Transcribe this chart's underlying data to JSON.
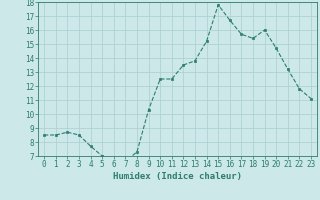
{
  "xlabel": "Humidex (Indice chaleur)",
  "x": [
    0,
    1,
    2,
    3,
    4,
    5,
    6,
    7,
    8,
    9,
    10,
    11,
    12,
    13,
    14,
    15,
    16,
    17,
    18,
    19,
    20,
    21,
    22,
    23
  ],
  "y": [
    8.5,
    8.5,
    8.7,
    8.5,
    7.7,
    7.0,
    6.8,
    6.6,
    7.3,
    10.3,
    12.5,
    12.5,
    13.5,
    13.8,
    15.2,
    17.8,
    16.7,
    15.7,
    15.4,
    16.0,
    14.7,
    13.2,
    11.8,
    11.1
  ],
  "ylim": [
    7,
    18
  ],
  "yticks": [
    7,
    8,
    9,
    10,
    11,
    12,
    13,
    14,
    15,
    16,
    17,
    18
  ],
  "xticks": [
    0,
    1,
    2,
    3,
    4,
    5,
    6,
    7,
    8,
    9,
    10,
    11,
    12,
    13,
    14,
    15,
    16,
    17,
    18,
    19,
    20,
    21,
    22,
    23
  ],
  "line_color": "#2e7d6e",
  "marker_color": "#2e7d6e",
  "bg_color": "#cce8e8",
  "grid_color": "#aacece",
  "axis_color": "#2e7d6e",
  "tick_label_color": "#2e7d6e",
  "xlabel_color": "#2e7d6e",
  "tick_fontsize": 5.5,
  "xlabel_fontsize": 6.5
}
